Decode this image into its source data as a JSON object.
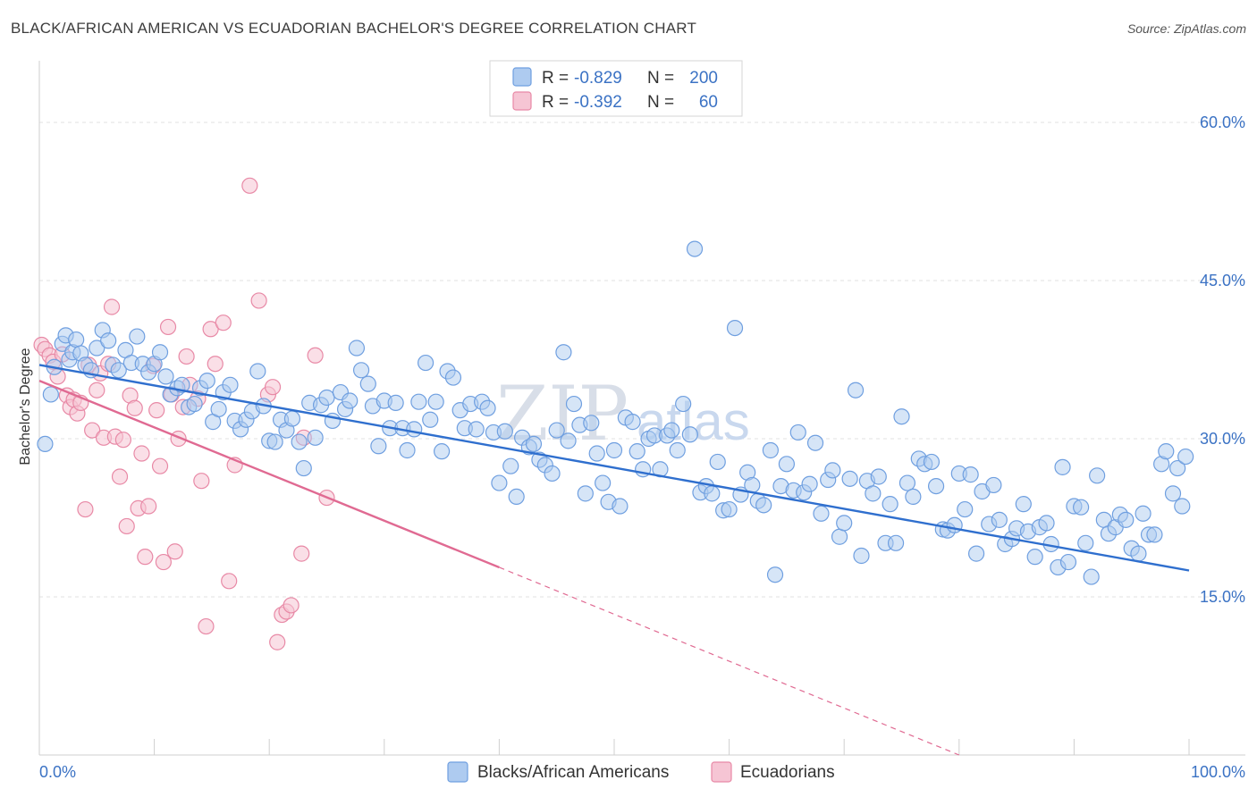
{
  "header": {
    "title": "BLACK/AFRICAN AMERICAN VS ECUADORIAN BACHELOR'S DEGREE CORRELATION CHART",
    "source": "Source: ZipAtlas.com"
  },
  "watermark": {
    "zip": "ZIP",
    "atlas": "atlas"
  },
  "legend": {
    "rows": [
      {
        "r_label": "R =",
        "r_value": "-0.829",
        "n_label": "N =",
        "n_value": "200"
      },
      {
        "r_label": "R =",
        "r_value": "-0.392",
        "n_label": "N =",
        "n_value": "60"
      }
    ]
  },
  "bottom_legend": {
    "items": [
      {
        "label": "Blacks/African Americans"
      },
      {
        "label": "Ecuadorians"
      }
    ]
  },
  "colors": {
    "blue": "#6f9fe0",
    "blue_fill": "#aecbf0",
    "blue_line": "#2f6fce",
    "pink": "#e889a6",
    "pink_fill": "#f6c5d4",
    "pink_line": "#e06a92"
  },
  "chart_data": {
    "type": "scatter",
    "title": "BLACK/AFRICAN AMERICAN VS ECUADORIAN BACHELOR'S DEGREE CORRELATION CHART",
    "xlabel": "",
    "ylabel": "Bachelor's Degree",
    "xlim": [
      0,
      100
    ],
    "ylim": [
      0,
      65
    ],
    "x_tick_labels": [
      "0.0%",
      "100.0%"
    ],
    "y_ticks": [
      15,
      30,
      45,
      60
    ],
    "y_tick_labels": [
      "15.0%",
      "30.0%",
      "45.0%",
      "60.0%"
    ],
    "grid": true,
    "legend_position": "top-center",
    "series": [
      {
        "name": "Blacks/African Americans",
        "r": -0.829,
        "n": 200,
        "trend": {
          "x": [
            0,
            100
          ],
          "y": [
            37.0,
            17.5
          ]
        },
        "points": [
          [
            0.5,
            29.5
          ],
          [
            1.0,
            34.2
          ],
          [
            1.3,
            36.8
          ],
          [
            2.0,
            39.0
          ],
          [
            2.3,
            39.8
          ],
          [
            2.6,
            37.5
          ],
          [
            2.9,
            38.2
          ],
          [
            3.2,
            39.4
          ],
          [
            3.6,
            38.1
          ],
          [
            4.0,
            37.0
          ],
          [
            4.5,
            36.5
          ],
          [
            5.0,
            38.6
          ],
          [
            5.5,
            40.3
          ],
          [
            6.0,
            39.3
          ],
          [
            6.4,
            37.0
          ],
          [
            6.9,
            36.5
          ],
          [
            7.5,
            38.4
          ],
          [
            8.0,
            37.2
          ],
          [
            8.5,
            39.7
          ],
          [
            9.0,
            37.1
          ],
          [
            9.5,
            36.3
          ],
          [
            10.0,
            37.1
          ],
          [
            10.5,
            38.2
          ],
          [
            11.0,
            35.9
          ],
          [
            11.4,
            34.2
          ],
          [
            12.0,
            34.8
          ],
          [
            12.4,
            35.1
          ],
          [
            13.0,
            33.0
          ],
          [
            13.5,
            33.3
          ],
          [
            14.0,
            34.8
          ],
          [
            14.6,
            35.5
          ],
          [
            15.1,
            31.6
          ],
          [
            15.6,
            32.8
          ],
          [
            16.0,
            34.4
          ],
          [
            16.6,
            35.1
          ],
          [
            17.0,
            31.7
          ],
          [
            17.5,
            30.9
          ],
          [
            18.0,
            31.8
          ],
          [
            18.5,
            32.6
          ],
          [
            19.0,
            36.4
          ],
          [
            19.5,
            33.1
          ],
          [
            20.0,
            29.8
          ],
          [
            20.5,
            29.7
          ],
          [
            21.0,
            31.8
          ],
          [
            21.5,
            30.8
          ],
          [
            22.0,
            31.9
          ],
          [
            22.6,
            29.7
          ],
          [
            23.0,
            27.2
          ],
          [
            23.5,
            33.4
          ],
          [
            24.0,
            30.1
          ],
          [
            24.5,
            33.2
          ],
          [
            25.0,
            33.9
          ],
          [
            25.5,
            31.7
          ],
          [
            26.2,
            34.4
          ],
          [
            26.6,
            32.8
          ],
          [
            27.0,
            33.6
          ],
          [
            27.6,
            38.6
          ],
          [
            28.0,
            36.5
          ],
          [
            28.6,
            35.2
          ],
          [
            29.0,
            33.1
          ],
          [
            29.5,
            29.3
          ],
          [
            30.0,
            33.6
          ],
          [
            30.5,
            31.0
          ],
          [
            31.0,
            33.4
          ],
          [
            31.6,
            31.0
          ],
          [
            32.0,
            28.9
          ],
          [
            32.6,
            30.9
          ],
          [
            33.0,
            33.5
          ],
          [
            33.6,
            37.2
          ],
          [
            34.0,
            31.8
          ],
          [
            34.5,
            33.5
          ],
          [
            35.0,
            28.8
          ],
          [
            35.5,
            36.4
          ],
          [
            36.0,
            35.8
          ],
          [
            36.6,
            32.7
          ],
          [
            37.0,
            31.0
          ],
          [
            37.5,
            33.3
          ],
          [
            38.0,
            30.9
          ],
          [
            38.5,
            33.5
          ],
          [
            39.0,
            32.9
          ],
          [
            39.5,
            30.6
          ],
          [
            40.0,
            25.8
          ],
          [
            40.5,
            30.7
          ],
          [
            41.0,
            27.4
          ],
          [
            41.5,
            24.5
          ],
          [
            42.0,
            30.1
          ],
          [
            42.6,
            29.2
          ],
          [
            43.0,
            29.5
          ],
          [
            43.5,
            28.0
          ],
          [
            44.0,
            27.5
          ],
          [
            44.6,
            26.7
          ],
          [
            45.0,
            30.8
          ],
          [
            45.6,
            38.2
          ],
          [
            46.0,
            29.8
          ],
          [
            46.5,
            33.3
          ],
          [
            47.0,
            31.3
          ],
          [
            47.5,
            24.8
          ],
          [
            48.0,
            31.5
          ],
          [
            48.5,
            28.6
          ],
          [
            49.0,
            25.8
          ],
          [
            49.5,
            24.0
          ],
          [
            50.0,
            28.9
          ],
          [
            50.5,
            23.6
          ],
          [
            51.0,
            32.0
          ],
          [
            51.6,
            31.6
          ],
          [
            52.0,
            28.8
          ],
          [
            52.5,
            27.1
          ],
          [
            53.0,
            30.0
          ],
          [
            53.5,
            30.3
          ],
          [
            54.0,
            27.1
          ],
          [
            54.6,
            30.3
          ],
          [
            55.0,
            30.8
          ],
          [
            55.5,
            28.9
          ],
          [
            56.0,
            33.3
          ],
          [
            56.6,
            30.4
          ],
          [
            57.0,
            48.0
          ],
          [
            57.5,
            24.9
          ],
          [
            58.0,
            25.5
          ],
          [
            58.5,
            24.8
          ],
          [
            59.0,
            27.8
          ],
          [
            59.5,
            23.2
          ],
          [
            60.0,
            23.3
          ],
          [
            60.5,
            40.5
          ],
          [
            61.0,
            24.7
          ],
          [
            61.6,
            26.8
          ],
          [
            62.0,
            25.6
          ],
          [
            62.5,
            24.1
          ],
          [
            63.0,
            23.7
          ],
          [
            63.6,
            28.9
          ],
          [
            64.0,
            17.1
          ],
          [
            64.5,
            25.5
          ],
          [
            65.0,
            27.6
          ],
          [
            65.6,
            25.1
          ],
          [
            66.0,
            30.6
          ],
          [
            66.5,
            24.9
          ],
          [
            67.0,
            25.7
          ],
          [
            67.5,
            29.6
          ],
          [
            68.0,
            22.9
          ],
          [
            68.6,
            26.1
          ],
          [
            69.0,
            27.0
          ],
          [
            69.6,
            20.7
          ],
          [
            70.0,
            22.0
          ],
          [
            70.5,
            26.2
          ],
          [
            71.0,
            34.6
          ],
          [
            71.5,
            18.9
          ],
          [
            72.0,
            26.0
          ],
          [
            72.5,
            24.8
          ],
          [
            73.0,
            26.4
          ],
          [
            73.6,
            20.1
          ],
          [
            74.0,
            23.8
          ],
          [
            74.5,
            20.1
          ],
          [
            75.0,
            32.1
          ],
          [
            75.5,
            25.8
          ],
          [
            76.0,
            24.5
          ],
          [
            76.5,
            28.1
          ],
          [
            77.0,
            27.6
          ],
          [
            77.6,
            27.8
          ],
          [
            78.0,
            25.5
          ],
          [
            78.6,
            21.4
          ],
          [
            79.0,
            21.3
          ],
          [
            79.6,
            21.8
          ],
          [
            80.0,
            26.7
          ],
          [
            80.5,
            23.3
          ],
          [
            81.0,
            26.6
          ],
          [
            81.5,
            19.1
          ],
          [
            82.0,
            25.0
          ],
          [
            82.6,
            21.9
          ],
          [
            83.0,
            25.6
          ],
          [
            83.5,
            22.3
          ],
          [
            84.0,
            20.0
          ],
          [
            84.6,
            20.5
          ],
          [
            85.0,
            21.5
          ],
          [
            85.6,
            23.8
          ],
          [
            86.0,
            21.2
          ],
          [
            86.6,
            18.8
          ],
          [
            87.0,
            21.6
          ],
          [
            87.6,
            22.0
          ],
          [
            88.0,
            20.0
          ],
          [
            88.6,
            17.8
          ],
          [
            89.0,
            27.3
          ],
          [
            89.5,
            18.3
          ],
          [
            90.0,
            23.6
          ],
          [
            90.6,
            23.5
          ],
          [
            91.0,
            20.1
          ],
          [
            91.5,
            16.9
          ],
          [
            92.0,
            26.5
          ],
          [
            92.6,
            22.3
          ],
          [
            93.0,
            21.0
          ],
          [
            93.6,
            21.6
          ],
          [
            94.0,
            22.8
          ],
          [
            94.5,
            22.3
          ],
          [
            95.0,
            19.6
          ],
          [
            95.6,
            19.1
          ],
          [
            96.0,
            22.9
          ],
          [
            96.5,
            20.9
          ],
          [
            97.0,
            20.9
          ],
          [
            97.6,
            27.6
          ],
          [
            98.0,
            28.8
          ],
          [
            98.6,
            24.8
          ],
          [
            99.0,
            27.2
          ],
          [
            99.4,
            23.6
          ],
          [
            99.7,
            28.3
          ]
        ]
      },
      {
        "name": "Ecuadorians",
        "r": -0.392,
        "n": 60,
        "trend": {
          "x": [
            0,
            40
          ],
          "y": [
            35.5,
            17.8
          ]
        },
        "trend_dashed": {
          "x": [
            40,
            80
          ],
          "y": [
            17.8,
            0
          ]
        },
        "points": [
          [
            0.2,
            38.9
          ],
          [
            0.5,
            38.5
          ],
          [
            0.9,
            37.9
          ],
          [
            1.2,
            37.3
          ],
          [
            1.6,
            35.9
          ],
          [
            2.0,
            38.0
          ],
          [
            2.4,
            34.1
          ],
          [
            2.7,
            33.0
          ],
          [
            3.0,
            33.7
          ],
          [
            3.3,
            32.4
          ],
          [
            3.6,
            33.4
          ],
          [
            4.0,
            23.3
          ],
          [
            4.3,
            37.0
          ],
          [
            4.6,
            30.8
          ],
          [
            5.0,
            34.6
          ],
          [
            5.3,
            36.2
          ],
          [
            5.6,
            30.1
          ],
          [
            6.0,
            37.1
          ],
          [
            6.3,
            42.5
          ],
          [
            6.6,
            30.2
          ],
          [
            7.0,
            26.4
          ],
          [
            7.3,
            29.9
          ],
          [
            7.6,
            21.7
          ],
          [
            7.9,
            34.1
          ],
          [
            8.3,
            32.9
          ],
          [
            8.6,
            23.4
          ],
          [
            8.9,
            28.6
          ],
          [
            9.2,
            18.8
          ],
          [
            9.5,
            23.6
          ],
          [
            9.9,
            36.9
          ],
          [
            10.2,
            32.7
          ],
          [
            10.5,
            27.4
          ],
          [
            10.8,
            18.3
          ],
          [
            11.2,
            40.6
          ],
          [
            11.5,
            34.2
          ],
          [
            11.8,
            19.3
          ],
          [
            12.1,
            30.0
          ],
          [
            12.5,
            33.0
          ],
          [
            12.8,
            37.8
          ],
          [
            13.1,
            35.1
          ],
          [
            13.8,
            33.8
          ],
          [
            14.1,
            26.0
          ],
          [
            14.5,
            12.2
          ],
          [
            14.9,
            40.4
          ],
          [
            15.3,
            37.1
          ],
          [
            16.0,
            41.0
          ],
          [
            16.5,
            16.5
          ],
          [
            17.0,
            27.5
          ],
          [
            18.3,
            54.0
          ],
          [
            19.1,
            43.1
          ],
          [
            19.9,
            34.2
          ],
          [
            20.3,
            34.9
          ],
          [
            20.7,
            10.7
          ],
          [
            21.1,
            13.3
          ],
          [
            21.5,
            13.6
          ],
          [
            21.9,
            14.2
          ],
          [
            22.8,
            19.1
          ],
          [
            23.0,
            30.1
          ],
          [
            24.0,
            37.9
          ],
          [
            25.0,
            24.4
          ]
        ]
      }
    ]
  }
}
